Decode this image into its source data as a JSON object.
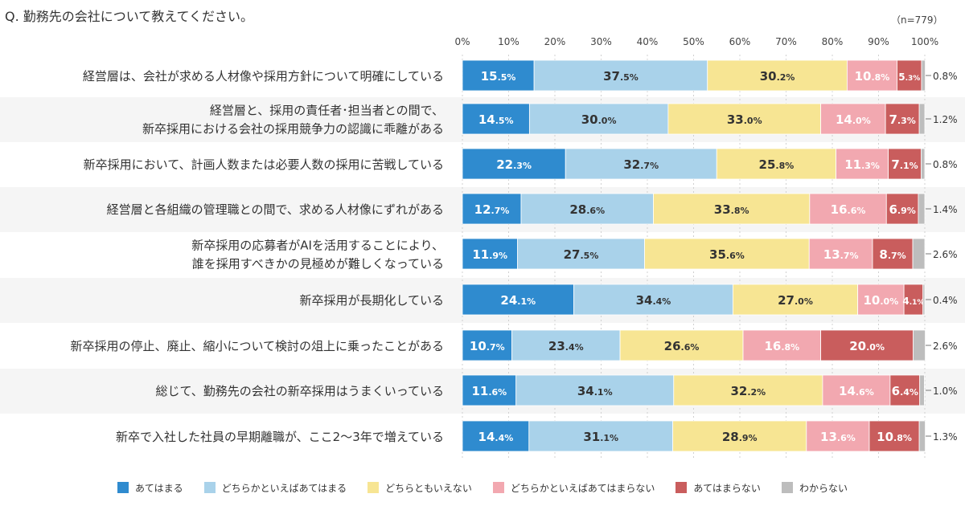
{
  "question": "Q.  勤務先の会社について教えてください。",
  "n_label": "（n=779）",
  "chart_data": {
    "type": "bar",
    "orientation": "horizontal",
    "stacked": true,
    "xlim": [
      0,
      100
    ],
    "xticks": [
      "0%",
      "10%",
      "20%",
      "30%",
      "40%",
      "50%",
      "60%",
      "70%",
      "80%",
      "90%",
      "100%"
    ],
    "categories": [
      [
        "経営層は、会社が求める人材像や採用方針について明確にしている"
      ],
      [
        "経営層と、採用の責任者･担当者との間で、",
        "新卒採用における会社の採用競争力の認識に乖離がある"
      ],
      [
        "新卒採用において、計画人数または必要人数の採用に苦戦している"
      ],
      [
        "経営層と各組織の管理職との間で、求める人材像にずれがある"
      ],
      [
        "新卒採用の応募者がAIを活用することにより、",
        "誰を採用すべきかの見極めが難しくなっている"
      ],
      [
        "新卒採用が長期化している"
      ],
      [
        "新卒採用の停止、廃止、縮小について検討の俎上に乗ったことがある"
      ],
      [
        "総じて、勤務先の会社の新卒採用はうまくいっている"
      ],
      [
        "新卒で入社した社員の早期離職が、ここ2〜3年で増えている"
      ]
    ],
    "series": [
      {
        "name": "あてはまる",
        "color": "#2f8bcf",
        "values": [
          15.5,
          14.5,
          22.3,
          12.7,
          11.9,
          24.1,
          10.7,
          11.6,
          14.4
        ]
      },
      {
        "name": "どちらかといえばあてはまる",
        "color": "#a9d2ea",
        "values": [
          37.5,
          30.0,
          32.7,
          28.6,
          27.5,
          34.4,
          23.4,
          34.1,
          31.1
        ]
      },
      {
        "name": "どちらともいえない",
        "color": "#f7e593",
        "values": [
          30.2,
          33.0,
          25.8,
          33.8,
          35.6,
          27.0,
          26.6,
          32.2,
          28.9
        ]
      },
      {
        "name": "どちらかといえばあてはまらない",
        "color": "#f2a8b0",
        "values": [
          10.8,
          14.0,
          11.3,
          16.6,
          13.7,
          10.0,
          16.8,
          14.6,
          13.6
        ]
      },
      {
        "name": "あてはまらない",
        "color": "#c95d5d",
        "values": [
          5.3,
          7.3,
          7.1,
          6.9,
          8.7,
          4.1,
          20.0,
          6.4,
          10.8
        ]
      },
      {
        "name": "わからない",
        "color": "#bdbdbd",
        "values": [
          0.8,
          1.2,
          0.8,
          1.4,
          2.6,
          0.4,
          2.6,
          1.0,
          1.3
        ]
      }
    ],
    "outside_labels": [
      "0.8%",
      "1.2%",
      "0.8%",
      "1.4%",
      "2.6%",
      "0.4%",
      "2.6%",
      "1.0%",
      "1.3%"
    ],
    "grid": true,
    "legend_position": "bottom"
  }
}
